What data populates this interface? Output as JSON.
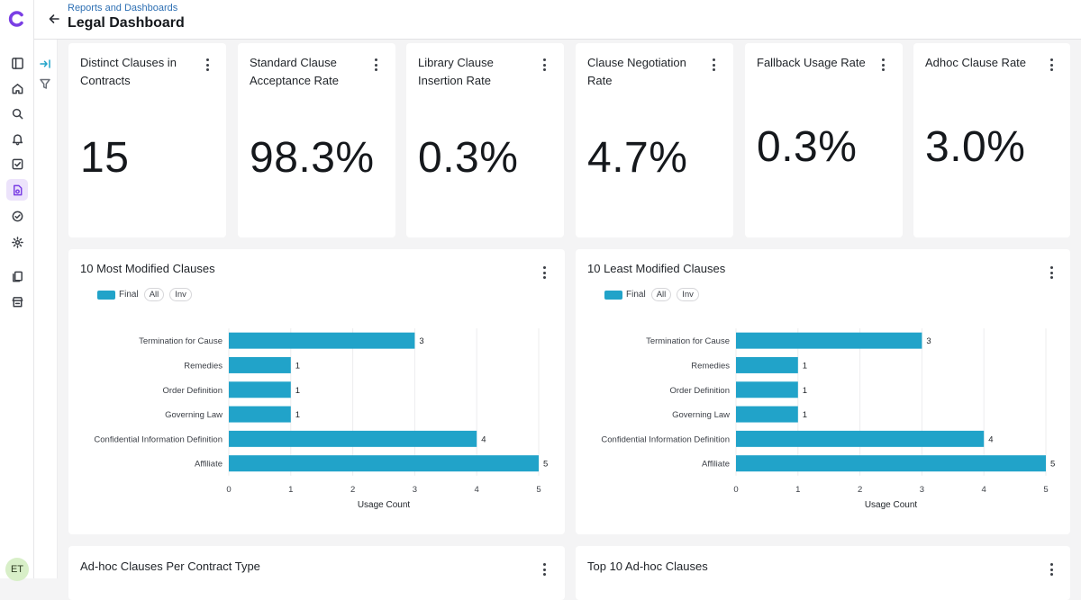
{
  "header": {
    "breadcrumb": "Reports and Dashboards",
    "title": "Legal Dashboard"
  },
  "user": {
    "initials": "ET"
  },
  "colors": {
    "accent": "#21a3c9",
    "active_nav": "#7a3fe4",
    "breadcrumb": "#2d6fb3"
  },
  "nav_icons": [
    "sidebar-toggle-icon",
    "home-icon",
    "search-icon",
    "bell-icon",
    "tasks-icon",
    "contract-settings-icon",
    "check-circle-icon",
    "gear-icon",
    "documents-icon",
    "store-icon"
  ],
  "kpis": [
    {
      "label": "Distinct Clauses in Contracts",
      "value": "15"
    },
    {
      "label": "Standard Clause Acceptance Rate",
      "value": "98.3%"
    },
    {
      "label": "Library Clause Insertion Rate",
      "value": "0.3%"
    },
    {
      "label": "Clause Negotiation Rate",
      "value": "4.7%"
    },
    {
      "label": "Fallback Usage Rate",
      "value": "0.3%"
    },
    {
      "label": "Adhoc Clause Rate",
      "value": "3.0%"
    }
  ],
  "legend": {
    "series": "Final",
    "all": "All",
    "inv": "Inv"
  },
  "bottom_cards": {
    "left": "Ad-hoc Clauses Per Contract Type",
    "right": "Top 10 Ad-hoc Clauses"
  },
  "chart_data": [
    {
      "type": "bar",
      "title": "10 Most Modified Clauses",
      "orientation": "horizontal",
      "categories": [
        "Termination for Cause",
        "Remedies",
        "Order Definition",
        "Governing Law",
        "Confidential Information Definition",
        "Affiliate"
      ],
      "series": [
        {
          "name": "Final",
          "values": [
            3,
            1,
            1,
            1,
            4,
            5
          ]
        }
      ],
      "xlabel": "Usage Count",
      "xlim": [
        0,
        5
      ],
      "xticks": [
        "0",
        "1",
        "2",
        "3",
        "4",
        "5"
      ],
      "grid": true
    },
    {
      "type": "bar",
      "title": "10 Least Modified Clauses",
      "orientation": "horizontal",
      "categories": [
        "Termination for Cause",
        "Remedies",
        "Order Definition",
        "Governing Law",
        "Confidential Information Definition",
        "Affiliate"
      ],
      "series": [
        {
          "name": "Final",
          "values": [
            3,
            1,
            1,
            1,
            4,
            5
          ]
        }
      ],
      "xlabel": "Usage Count",
      "xlim": [
        0,
        5
      ],
      "xticks": [
        "0",
        "1",
        "2",
        "3",
        "4",
        "5"
      ],
      "grid": true
    }
  ]
}
